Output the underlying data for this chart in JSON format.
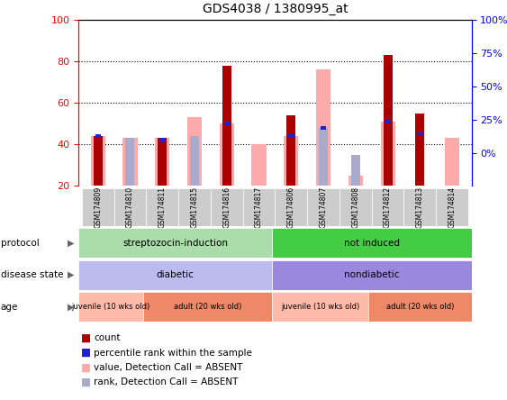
{
  "title": "GDS4038 / 1380995_at",
  "samples": [
    "GSM174809",
    "GSM174810",
    "GSM174811",
    "GSM174815",
    "GSM174816",
    "GSM174817",
    "GSM174806",
    "GSM174807",
    "GSM174808",
    "GSM174812",
    "GSM174813",
    "GSM174814"
  ],
  "count_values": [
    44,
    0,
    43,
    0,
    78,
    0,
    54,
    0,
    0,
    83,
    55,
    0
  ],
  "percentile_values": [
    44,
    0,
    42,
    0,
    50,
    0,
    44,
    48,
    0,
    51,
    45,
    0
  ],
  "absent_value_bars": [
    44,
    43,
    43,
    53,
    50,
    40,
    44,
    76,
    25,
    51,
    0,
    43
  ],
  "absent_rank_bars": [
    44,
    43,
    0,
    44,
    0,
    0,
    0,
    48,
    35,
    0,
    45,
    0
  ],
  "ylim_main": [
    20,
    100
  ],
  "yticks_main": [
    20,
    40,
    60,
    80,
    100
  ],
  "ylim2": [
    0,
    100
  ],
  "y2ticks": [
    0,
    25,
    50,
    75,
    100
  ],
  "y2labels": [
    "0%",
    "25%",
    "50%",
    "75%",
    "100%"
  ],
  "color_count": "#aa0000",
  "color_percentile": "#2222cc",
  "color_absent_value": "#ffaaaa",
  "color_absent_rank": "#aaaacc",
  "protocol_labels": [
    "streptozocin-induction",
    "not induced"
  ],
  "protocol_colors": [
    "#aaddaa",
    "#44cc44"
  ],
  "disease_labels": [
    "diabetic",
    "nondiabetic"
  ],
  "disease_colors": [
    "#bbbbee",
    "#9988dd"
  ],
  "age_groups": [
    {
      "label": "juvenile (10 wks old)",
      "color": "#ffbbaa"
    },
    {
      "label": "adult (20 wks old)",
      "color": "#ee8866"
    },
    {
      "label": "juvenile (10 wks old)",
      "color": "#ffbbaa"
    },
    {
      "label": "adult (20 wks old)",
      "color": "#ee8866"
    }
  ],
  "protocol_split": 6,
  "disease_split": 6,
  "age_splits": [
    0,
    2,
    6,
    9,
    12
  ],
  "n_samples": 12
}
